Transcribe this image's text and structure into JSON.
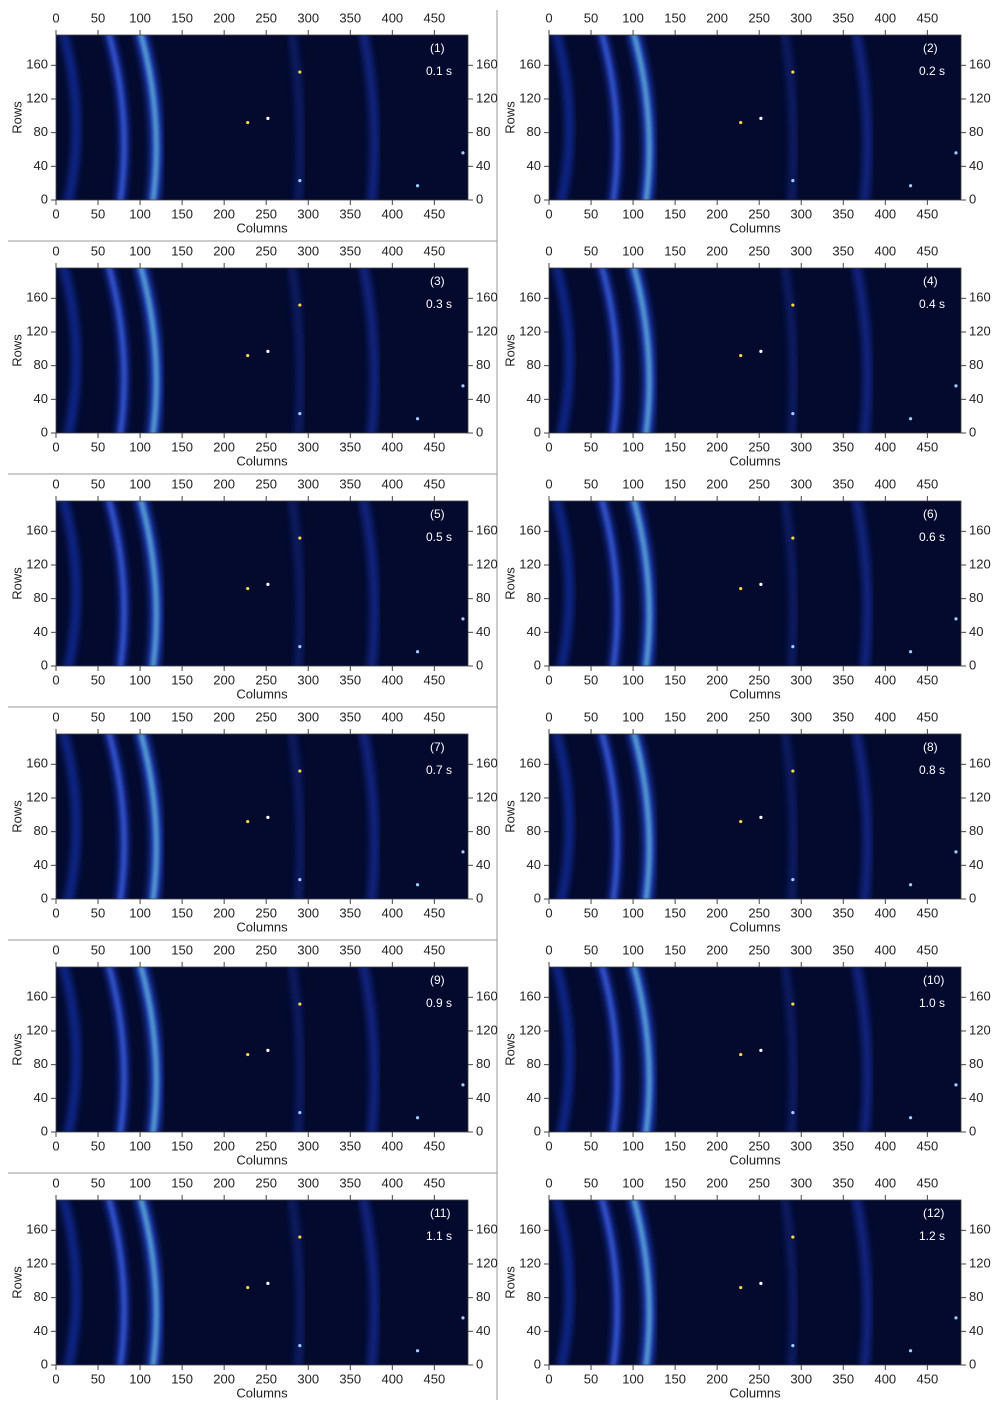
{
  "chart_data": [
    {
      "type": "image",
      "title": "(1)",
      "annotation": "0.1 s",
      "xlabel": "Columns",
      "ylabel": "Rows",
      "xlim": [
        0,
        490
      ],
      "ylim": [
        0,
        196
      ],
      "xticks": [
        0,
        50,
        100,
        150,
        200,
        250,
        300,
        350,
        400,
        450
      ],
      "yticks": [
        0,
        40,
        80,
        120,
        160
      ],
      "background": "#030a2e"
    },
    {
      "type": "image",
      "title": "(2)",
      "annotation": "0.2 s",
      "xlabel": "Columns",
      "ylabel": "Rows",
      "xlim": [
        0,
        490
      ],
      "ylim": [
        0,
        196
      ],
      "xticks": [
        0,
        50,
        100,
        150,
        200,
        250,
        300,
        350,
        400,
        450
      ],
      "yticks": [
        0,
        40,
        80,
        120,
        160
      ],
      "background": "#030a2e"
    },
    {
      "type": "image",
      "title": "(3)",
      "annotation": "0.3 s",
      "xlabel": "Columns",
      "ylabel": "Rows",
      "xlim": [
        0,
        490
      ],
      "ylim": [
        0,
        196
      ],
      "xticks": [
        0,
        50,
        100,
        150,
        200,
        250,
        300,
        350,
        400,
        450
      ],
      "yticks": [
        0,
        40,
        80,
        120,
        160
      ],
      "background": "#030a2e"
    },
    {
      "type": "image",
      "title": "(4)",
      "annotation": "0.4 s",
      "xlabel": "Columns",
      "ylabel": "Rows",
      "xlim": [
        0,
        490
      ],
      "ylim": [
        0,
        196
      ],
      "xticks": [
        0,
        50,
        100,
        150,
        200,
        250,
        300,
        350,
        400,
        450
      ],
      "yticks": [
        0,
        40,
        80,
        120,
        160
      ],
      "background": "#030a2e"
    },
    {
      "type": "image",
      "title": "(5)",
      "annotation": "0.5 s",
      "xlabel": "Columns",
      "ylabel": "Rows",
      "xlim": [
        0,
        490
      ],
      "ylim": [
        0,
        196
      ],
      "xticks": [
        0,
        50,
        100,
        150,
        200,
        250,
        300,
        350,
        400,
        450
      ],
      "yticks": [
        0,
        40,
        80,
        120,
        160
      ],
      "background": "#030a2e"
    },
    {
      "type": "image",
      "title": "(6)",
      "annotation": "0.6 s",
      "xlabel": "Columns",
      "ylabel": "Rows",
      "xlim": [
        0,
        490
      ],
      "ylim": [
        0,
        196
      ],
      "xticks": [
        0,
        50,
        100,
        150,
        200,
        250,
        300,
        350,
        400,
        450
      ],
      "yticks": [
        0,
        40,
        80,
        120,
        160
      ],
      "background": "#030a2e"
    },
    {
      "type": "image",
      "title": "(7)",
      "annotation": "0.7 s",
      "xlabel": "Columns",
      "ylabel": "Rows",
      "xlim": [
        0,
        490
      ],
      "ylim": [
        0,
        196
      ],
      "xticks": [
        0,
        50,
        100,
        150,
        200,
        250,
        300,
        350,
        400,
        450
      ],
      "yticks": [
        0,
        40,
        80,
        120,
        160
      ],
      "background": "#030a2e"
    },
    {
      "type": "image",
      "title": "(8)",
      "annotation": "0.8 s",
      "xlabel": "Columns",
      "ylabel": "Rows",
      "xlim": [
        0,
        490
      ],
      "ylim": [
        0,
        196
      ],
      "xticks": [
        0,
        50,
        100,
        150,
        200,
        250,
        300,
        350,
        400,
        450
      ],
      "yticks": [
        0,
        40,
        80,
        120,
        160
      ],
      "background": "#030a2e"
    },
    {
      "type": "image",
      "title": "(9)",
      "annotation": "0.9 s",
      "xlabel": "Columns",
      "ylabel": "Rows",
      "xlim": [
        0,
        490
      ],
      "ylim": [
        0,
        196
      ],
      "xticks": [
        0,
        50,
        100,
        150,
        200,
        250,
        300,
        350,
        400,
        450
      ],
      "yticks": [
        0,
        40,
        80,
        120,
        160
      ],
      "background": "#030a2e"
    },
    {
      "type": "image",
      "title": "(10)",
      "annotation": "1.0 s",
      "xlabel": "Columns",
      "ylabel": "Rows",
      "xlim": [
        0,
        490
      ],
      "ylim": [
        0,
        196
      ],
      "xticks": [
        0,
        50,
        100,
        150,
        200,
        250,
        300,
        350,
        400,
        450
      ],
      "yticks": [
        0,
        40,
        80,
        120,
        160
      ],
      "background": "#030a2e"
    },
    {
      "type": "image",
      "title": "(11)",
      "annotation": "1.1 s",
      "xlabel": "Columns",
      "ylabel": "Rows",
      "xlim": [
        0,
        490
      ],
      "ylim": [
        0,
        196
      ],
      "xticks": [
        0,
        50,
        100,
        150,
        200,
        250,
        300,
        350,
        400,
        450
      ],
      "yticks": [
        0,
        40,
        80,
        120,
        160
      ],
      "background": "#030a2e"
    },
    {
      "type": "image",
      "title": "(12)",
      "annotation": "1.2 s",
      "xlabel": "Columns",
      "ylabel": "Rows",
      "xlim": [
        0,
        490
      ],
      "ylim": [
        0,
        196
      ],
      "xticks": [
        0,
        50,
        100,
        150,
        200,
        250,
        300,
        350,
        400,
        450
      ],
      "yticks": [
        0,
        40,
        80,
        120,
        160
      ],
      "background": "#030a2e"
    }
  ]
}
